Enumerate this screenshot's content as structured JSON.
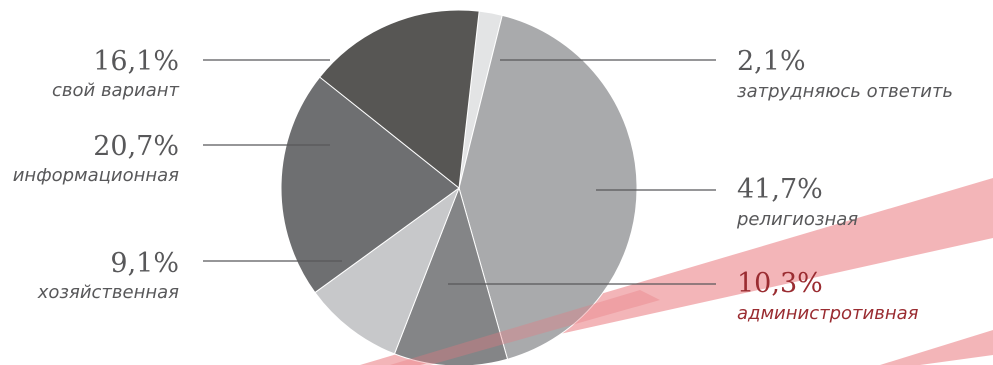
{
  "chart_data": {
    "type": "pie",
    "slices": [
      {
        "label": "затрудняюсь ответить",
        "value": 2.1,
        "value_label": "2,1%",
        "color": "#e3e4e5",
        "highlight": false
      },
      {
        "label": "религиозная",
        "value": 41.7,
        "value_label": "41,7%",
        "color": "#a9aaac",
        "highlight": false
      },
      {
        "label": "администротивная",
        "value": 10.3,
        "value_label": "10,3%",
        "color": "#848587",
        "highlight": true
      },
      {
        "label": "хозяйственная",
        "value": 9.1,
        "value_label": "9,1%",
        "color": "#c7c8ca",
        "highlight": false
      },
      {
        "label": "информационная",
        "value": 20.7,
        "value_label": "20,7%",
        "color": "#6e6f71",
        "highlight": false
      },
      {
        "label": "свой вариант",
        "value": 16.1,
        "value_label": "16,1%",
        "color": "#575654",
        "highlight": false
      }
    ]
  },
  "colors": {
    "text": "#58585a",
    "highlight_text": "#9a2c31",
    "leader_line": "#58585a",
    "stamp": "#e9797d"
  }
}
